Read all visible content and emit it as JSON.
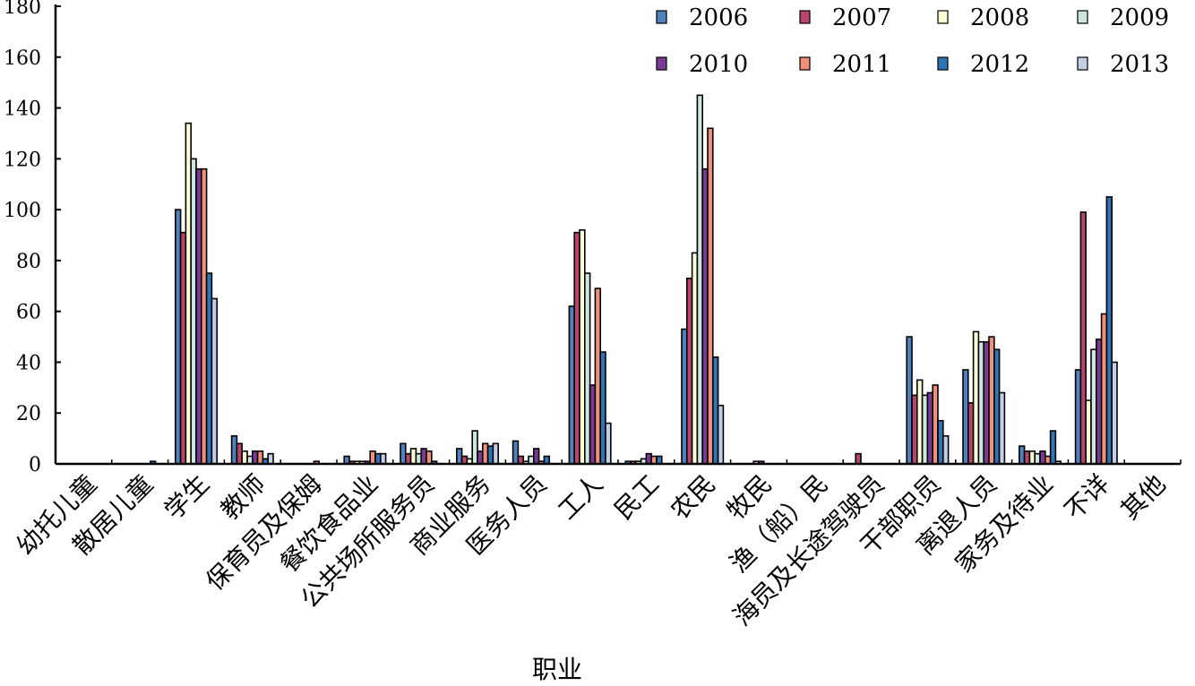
{
  "chart_data": {
    "type": "bar",
    "title": "",
    "xlabel": "职业",
    "ylabel": "",
    "ylim": [
      0,
      180
    ],
    "yticks": [
      "0",
      "20",
      "40",
      "60",
      "80",
      "100",
      "120",
      "140",
      "160",
      "180"
    ],
    "grid": false,
    "legend_position": "top-right",
    "categories": [
      "幼托儿童",
      "散居儿童",
      "学生",
      "教师",
      "保育员及保姆",
      "餐饮食品业",
      "公共场所服务员",
      "商业服务",
      "医务人员",
      "工人",
      "民工",
      "农民",
      "牧民",
      "渔（船）民",
      "海员及长途驾驶员",
      "干部职员",
      "离退人员",
      "家务及待业",
      "不详",
      "其他"
    ],
    "series": [
      {
        "name": "2006",
        "color": "#4f81bd",
        "values": [
          0,
          0,
          100,
          11,
          0,
          3,
          8,
          6,
          9,
          62,
          1,
          53,
          0,
          0,
          0,
          50,
          37,
          7,
          37,
          0
        ]
      },
      {
        "name": "2007",
        "color": "#b8456e",
        "values": [
          0,
          0,
          91,
          8,
          0,
          1,
          4,
          3,
          3,
          91,
          1,
          73,
          0,
          0,
          4,
          27,
          24,
          5,
          99,
          0
        ]
      },
      {
        "name": "2008",
        "color": "#ffffd6",
        "values": [
          0,
          0,
          134,
          5,
          0,
          1,
          6,
          2,
          1,
          92,
          1,
          83,
          0,
          0,
          0,
          33,
          52,
          5,
          25,
          0
        ]
      },
      {
        "name": "2009",
        "color": "#cde6e0",
        "values": [
          0,
          0,
          120,
          3,
          0,
          1,
          4,
          13,
          3,
          75,
          2,
          145,
          1,
          0,
          0,
          27,
          48,
          4,
          45,
          0
        ]
      },
      {
        "name": "2010",
        "color": "#7a3a93",
        "values": [
          0,
          0,
          116,
          5,
          0,
          1,
          6,
          5,
          6,
          31,
          4,
          116,
          1,
          0,
          0,
          28,
          48,
          5,
          49,
          0
        ]
      },
      {
        "name": "2011",
        "color": "#f0907a",
        "values": [
          0,
          0,
          116,
          5,
          1,
          5,
          5,
          8,
          1,
          69,
          3,
          132,
          0,
          0,
          0,
          31,
          50,
          3,
          59,
          0
        ]
      },
      {
        "name": "2012",
        "color": "#2e75b6",
        "values": [
          0,
          1,
          75,
          2,
          0,
          4,
          1,
          7,
          3,
          44,
          3,
          42,
          0,
          0,
          0,
          17,
          45,
          13,
          105,
          0
        ]
      },
      {
        "name": "2013",
        "color": "#c2cfe6",
        "values": [
          0,
          0,
          65,
          4,
          0,
          4,
          0,
          8,
          0,
          16,
          0,
          23,
          0,
          0,
          0,
          11,
          28,
          1,
          40,
          0
        ]
      }
    ]
  }
}
